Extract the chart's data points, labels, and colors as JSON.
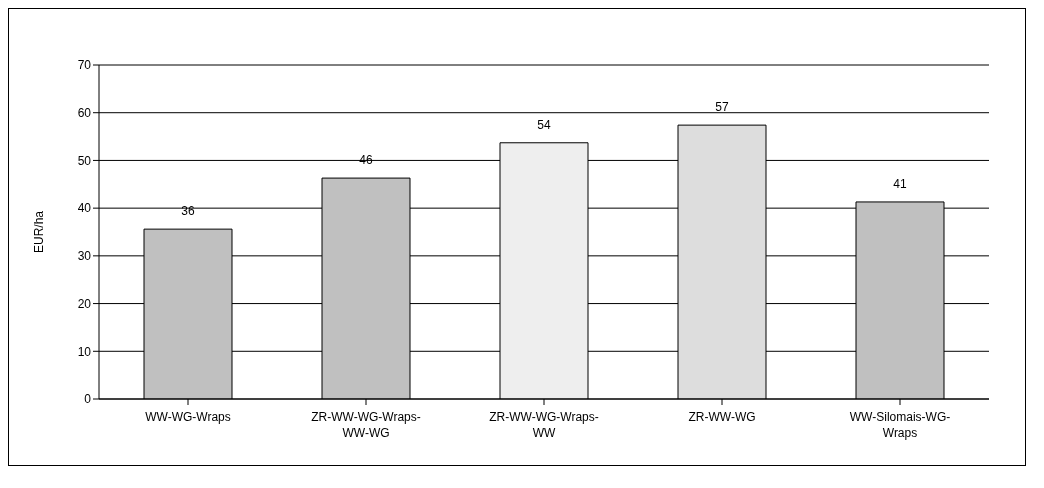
{
  "chart_data": {
    "type": "bar",
    "ylabel": "EUR/ha",
    "categories": [
      "WW-WG-Wraps",
      "ZR-WW-WG-Wraps-WW-WG",
      "ZR-WW-WG-Wraps-WW",
      "ZR-WW-WG",
      "WW-Silomais-WG-Wraps"
    ],
    "values": [
      35.6,
      46.3,
      53.7,
      57.4,
      41.3
    ],
    "colors": [
      "#c0c0c0",
      "#c0c0c0",
      "#eeeeee",
      "#dddddd",
      "#c0c0c0"
    ],
    "value_labels": [
      "36",
      "46",
      "54",
      "57",
      "41"
    ],
    "ylim": [
      0,
      70
    ],
    "yticks": [
      0,
      10,
      20,
      30,
      40,
      50,
      60,
      70
    ],
    "grid": "y"
  }
}
